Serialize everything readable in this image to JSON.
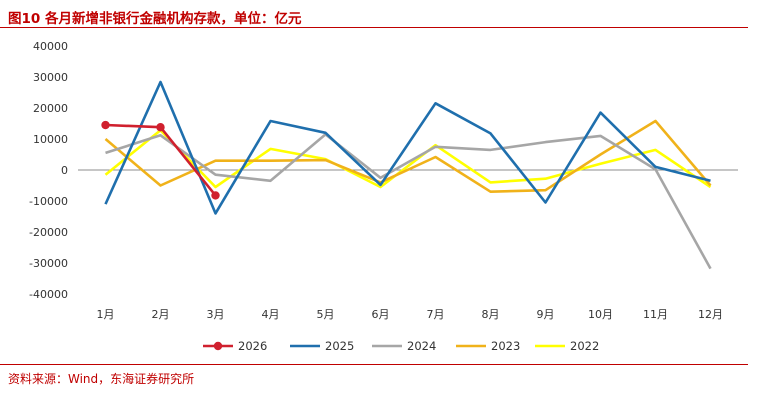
{
  "figure": {
    "title": "图10  各月新增非银行金融机构存款，单位：亿元",
    "source": "资料来源：Wind，东海证券研究所"
  },
  "chart_data": {
    "type": "line",
    "title": "各月新增非银行金融机构存款，单位：亿元",
    "xlabel": "",
    "ylabel": "亿元",
    "categories": [
      "1月",
      "2月",
      "3月",
      "4月",
      "5月",
      "6月",
      "7月",
      "8月",
      "9月",
      "10月",
      "11月",
      "12月"
    ],
    "ylim": [
      -40000,
      40000
    ],
    "yticks": [
      40000,
      30000,
      20000,
      10000,
      0,
      -10000,
      -20000,
      -30000,
      -40000
    ],
    "grid": false,
    "legend_position": "bottom",
    "series": [
      {
        "name": "2026",
        "color": "#d0202e",
        "markers": true,
        "values": [
          14500,
          13800,
          -8200,
          null,
          null,
          null,
          null,
          null,
          null,
          null,
          null,
          null
        ]
      },
      {
        "name": "2025",
        "color": "#1f6fad",
        "markers": false,
        "values": [
          -11000,
          28400,
          -14000,
          15800,
          12000,
          -4800,
          21500,
          11800,
          -10500,
          18500,
          1000,
          -3500
        ]
      },
      {
        "name": "2024",
        "color": "#a6a6a6",
        "markers": false,
        "values": [
          5500,
          11200,
          -1500,
          -3500,
          11500,
          -2500,
          7500,
          6500,
          9000,
          11000,
          200,
          -31800
        ]
      },
      {
        "name": "2023",
        "color": "#f0b21a",
        "markers": false,
        "values": [
          10000,
          -5000,
          3000,
          3000,
          3200,
          -4000,
          4200,
          -7000,
          -6500,
          5000,
          15800,
          -5000
        ]
      },
      {
        "name": "2022",
        "color": "#ffff00",
        "markers": false,
        "values": [
          -1500,
          12800,
          -5500,
          6800,
          3500,
          -5500,
          8000,
          -4000,
          -2800,
          2000,
          6500,
          -5500
        ]
      }
    ]
  }
}
